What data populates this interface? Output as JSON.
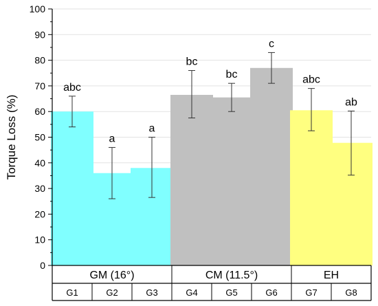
{
  "chart_data": {
    "type": "bar",
    "ylabel": "Torque Loss (%)",
    "ylim": [
      0,
      100
    ],
    "yticks": [
      0,
      10,
      20,
      30,
      40,
      50,
      60,
      70,
      80,
      90,
      100
    ],
    "grid": true,
    "categories": [
      "G1",
      "G2",
      "G3",
      "G4",
      "G5",
      "G6",
      "G7",
      "G8"
    ],
    "values": [
      60,
      36,
      38,
      66.5,
      65.5,
      77,
      60.5,
      47.8
    ],
    "error_low": [
      54,
      26,
      26.5,
      57.5,
      60,
      71,
      52.5,
      35.2
    ],
    "error_high": [
      66,
      46,
      50,
      76,
      71,
      83,
      69,
      60.2
    ],
    "significance_labels": [
      "abc",
      "a",
      "a",
      "bc",
      "bc",
      "c",
      "abc",
      "ab"
    ],
    "groups": [
      {
        "label": "GM (16°)",
        "categories": [
          "G1",
          "G2",
          "G3"
        ],
        "color": "#80FFFF"
      },
      {
        "label": "CM (11.5°)",
        "categories": [
          "G4",
          "G5",
          "G6"
        ],
        "color": "#C0C0C0"
      },
      {
        "label": "EH",
        "categories": [
          "G7",
          "G8"
        ],
        "color": "#FFFF80"
      }
    ],
    "bar_colors": [
      "#80FFFF",
      "#80FFFF",
      "#80FFFF",
      "#C0C0C0",
      "#C0C0C0",
      "#C0C0C0",
      "#FFFF80",
      "#FFFF80"
    ]
  }
}
